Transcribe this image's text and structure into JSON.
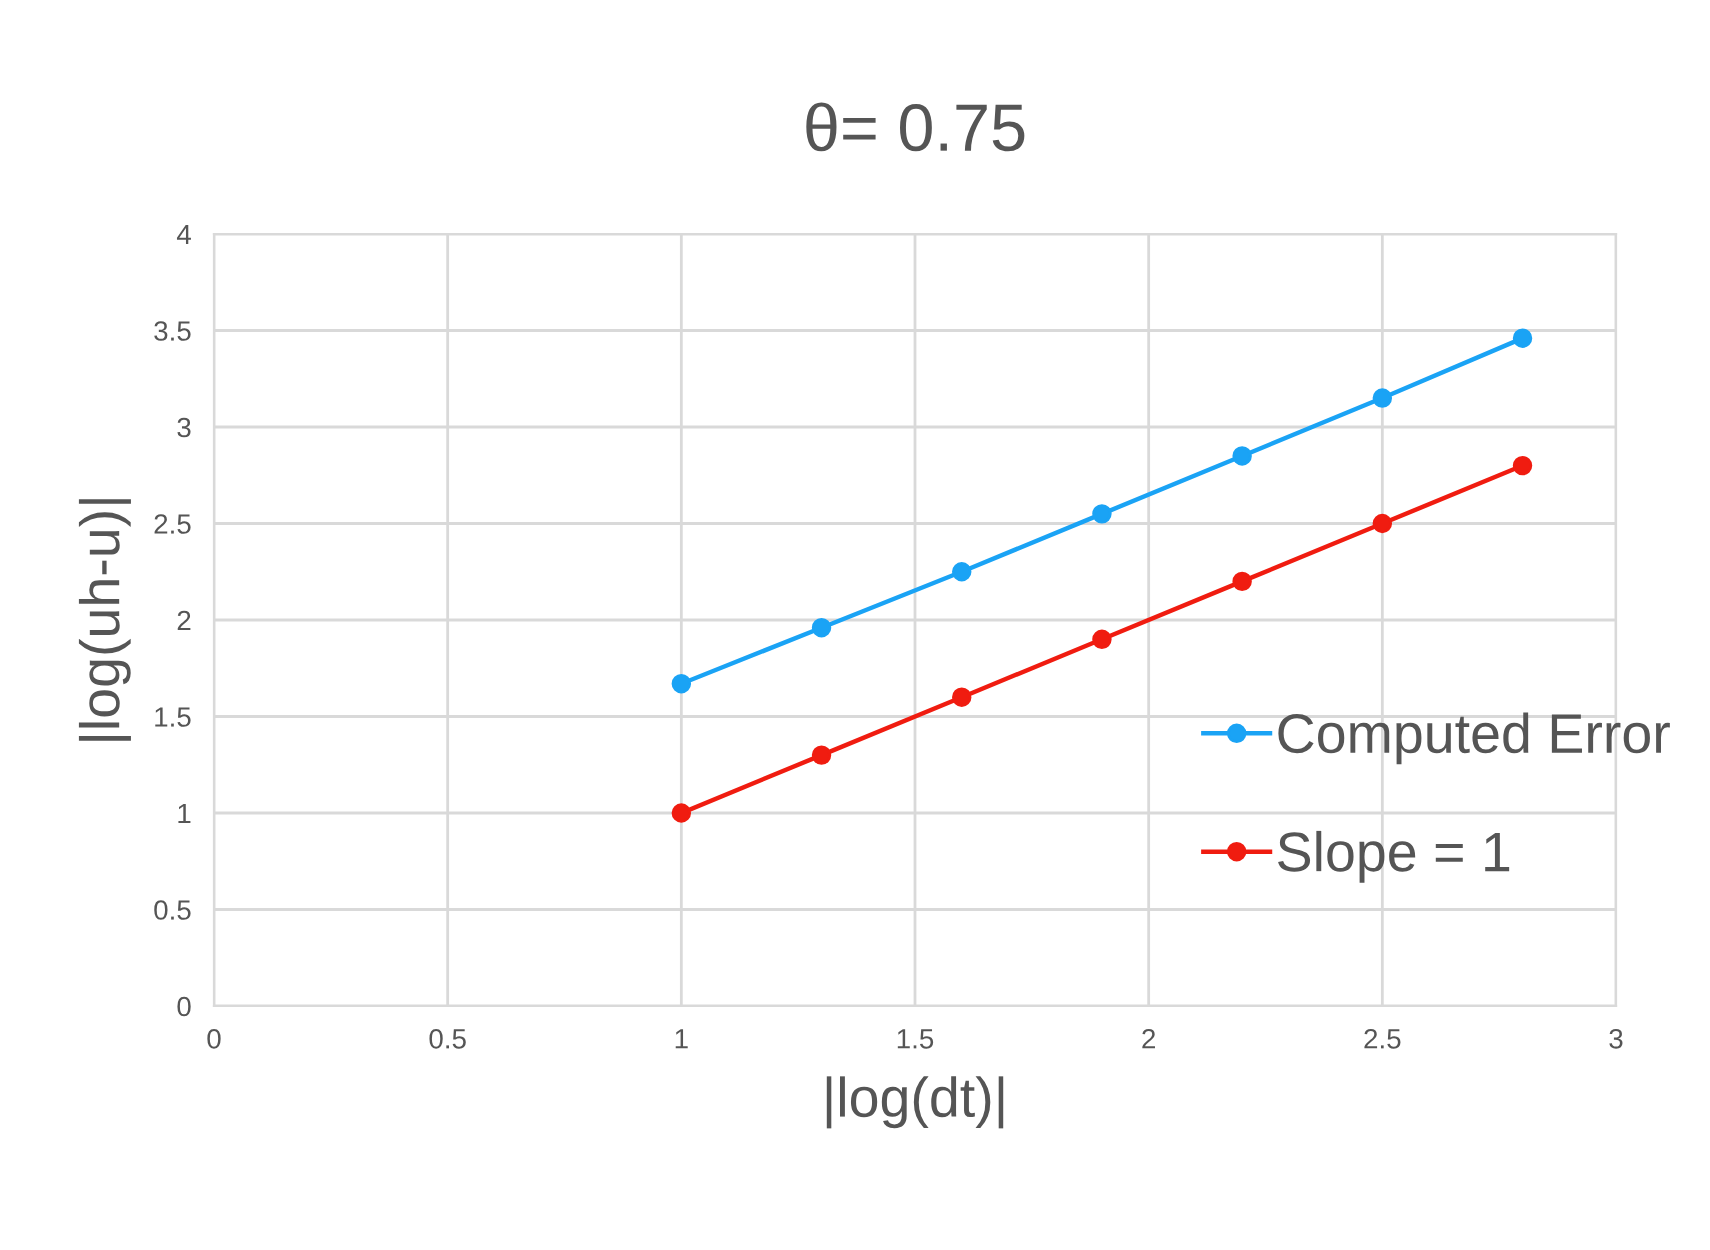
{
  "chart_data": {
    "type": "line",
    "title": "θ= 0.75",
    "xlabel": "|log(dt)|",
    "ylabel": "|log(uh-u)|",
    "series": [
      {
        "name": "Computed Error",
        "color": "#1aa3f5",
        "x": [
          1,
          1.3,
          1.6,
          1.9,
          2.2,
          2.5,
          2.8
        ],
        "values": [
          1.67,
          1.96,
          2.25,
          2.55,
          2.85,
          3.15,
          3.46
        ]
      },
      {
        "name": "Slope = 1",
        "color": "#f01c10",
        "x": [
          1,
          1.3,
          1.6,
          1.9,
          2.2,
          2.5,
          2.8
        ],
        "values": [
          1,
          1.3,
          1.6,
          1.9,
          2.2,
          2.5,
          2.8
        ]
      }
    ],
    "xlim": [
      0,
      3
    ],
    "xticks": [
      0,
      0.5,
      1,
      1.5,
      2,
      2.5,
      3
    ],
    "ylim": [
      0,
      4
    ],
    "yticks": [
      0,
      0.5,
      1,
      1.5,
      2,
      2.5,
      3,
      3.5,
      4
    ],
    "grid": true,
    "legend": "right",
    "marker": "circle",
    "line_style": "solid"
  }
}
